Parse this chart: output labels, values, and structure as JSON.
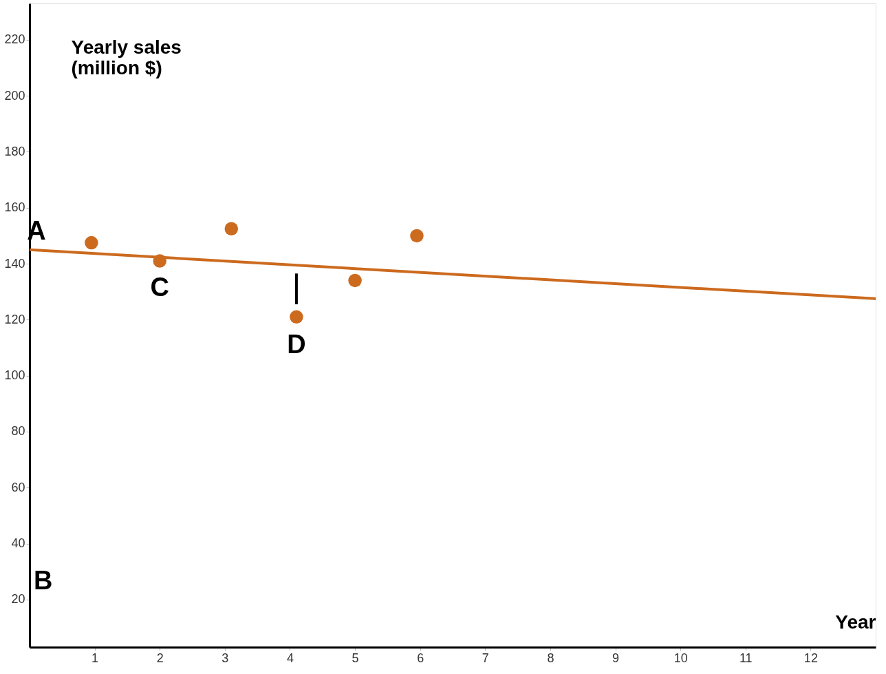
{
  "chart_data": {
    "type": "scatter",
    "xlabel": "Year",
    "ylabel": "Yearly sales (million $)",
    "xlim": [
      0,
      13
    ],
    "ylim": [
      3,
      233
    ],
    "xticks": [
      1,
      2,
      3,
      4,
      5,
      6,
      7,
      8,
      9,
      10,
      11,
      12
    ],
    "yticks": [
      20,
      40,
      60,
      80,
      100,
      120,
      140,
      160,
      180,
      200,
      220
    ],
    "grid": false,
    "series": [
      {
        "color": "#cc6a1e",
        "marker": "circle",
        "x": [
          0.95,
          2.0,
          3.1,
          4.1,
          5.0,
          5.95
        ],
        "values": [
          147.5,
          141,
          152.5,
          121,
          134,
          150
        ]
      },
      {
        "type": "line",
        "color": "#cc6a1e",
        "marker": "none",
        "line_style": "solid",
        "x": [
          0,
          13
        ],
        "values": [
          145,
          127.5
        ]
      },
      {
        "type": "line",
        "color": "#000000",
        "marker": "none",
        "line_style": "solid",
        "x": [
          4.1,
          4.1
        ],
        "values": [
          136.5,
          125.5
        ]
      }
    ],
    "annotations": [
      {
        "text": "A",
        "x": 0,
        "y": 145
      },
      "B",
      {
        "text": "C",
        "x": 2.0,
        "y": 141
      },
      {
        "text": "D",
        "x": 4.1,
        "y": 121
      }
    ]
  }
}
